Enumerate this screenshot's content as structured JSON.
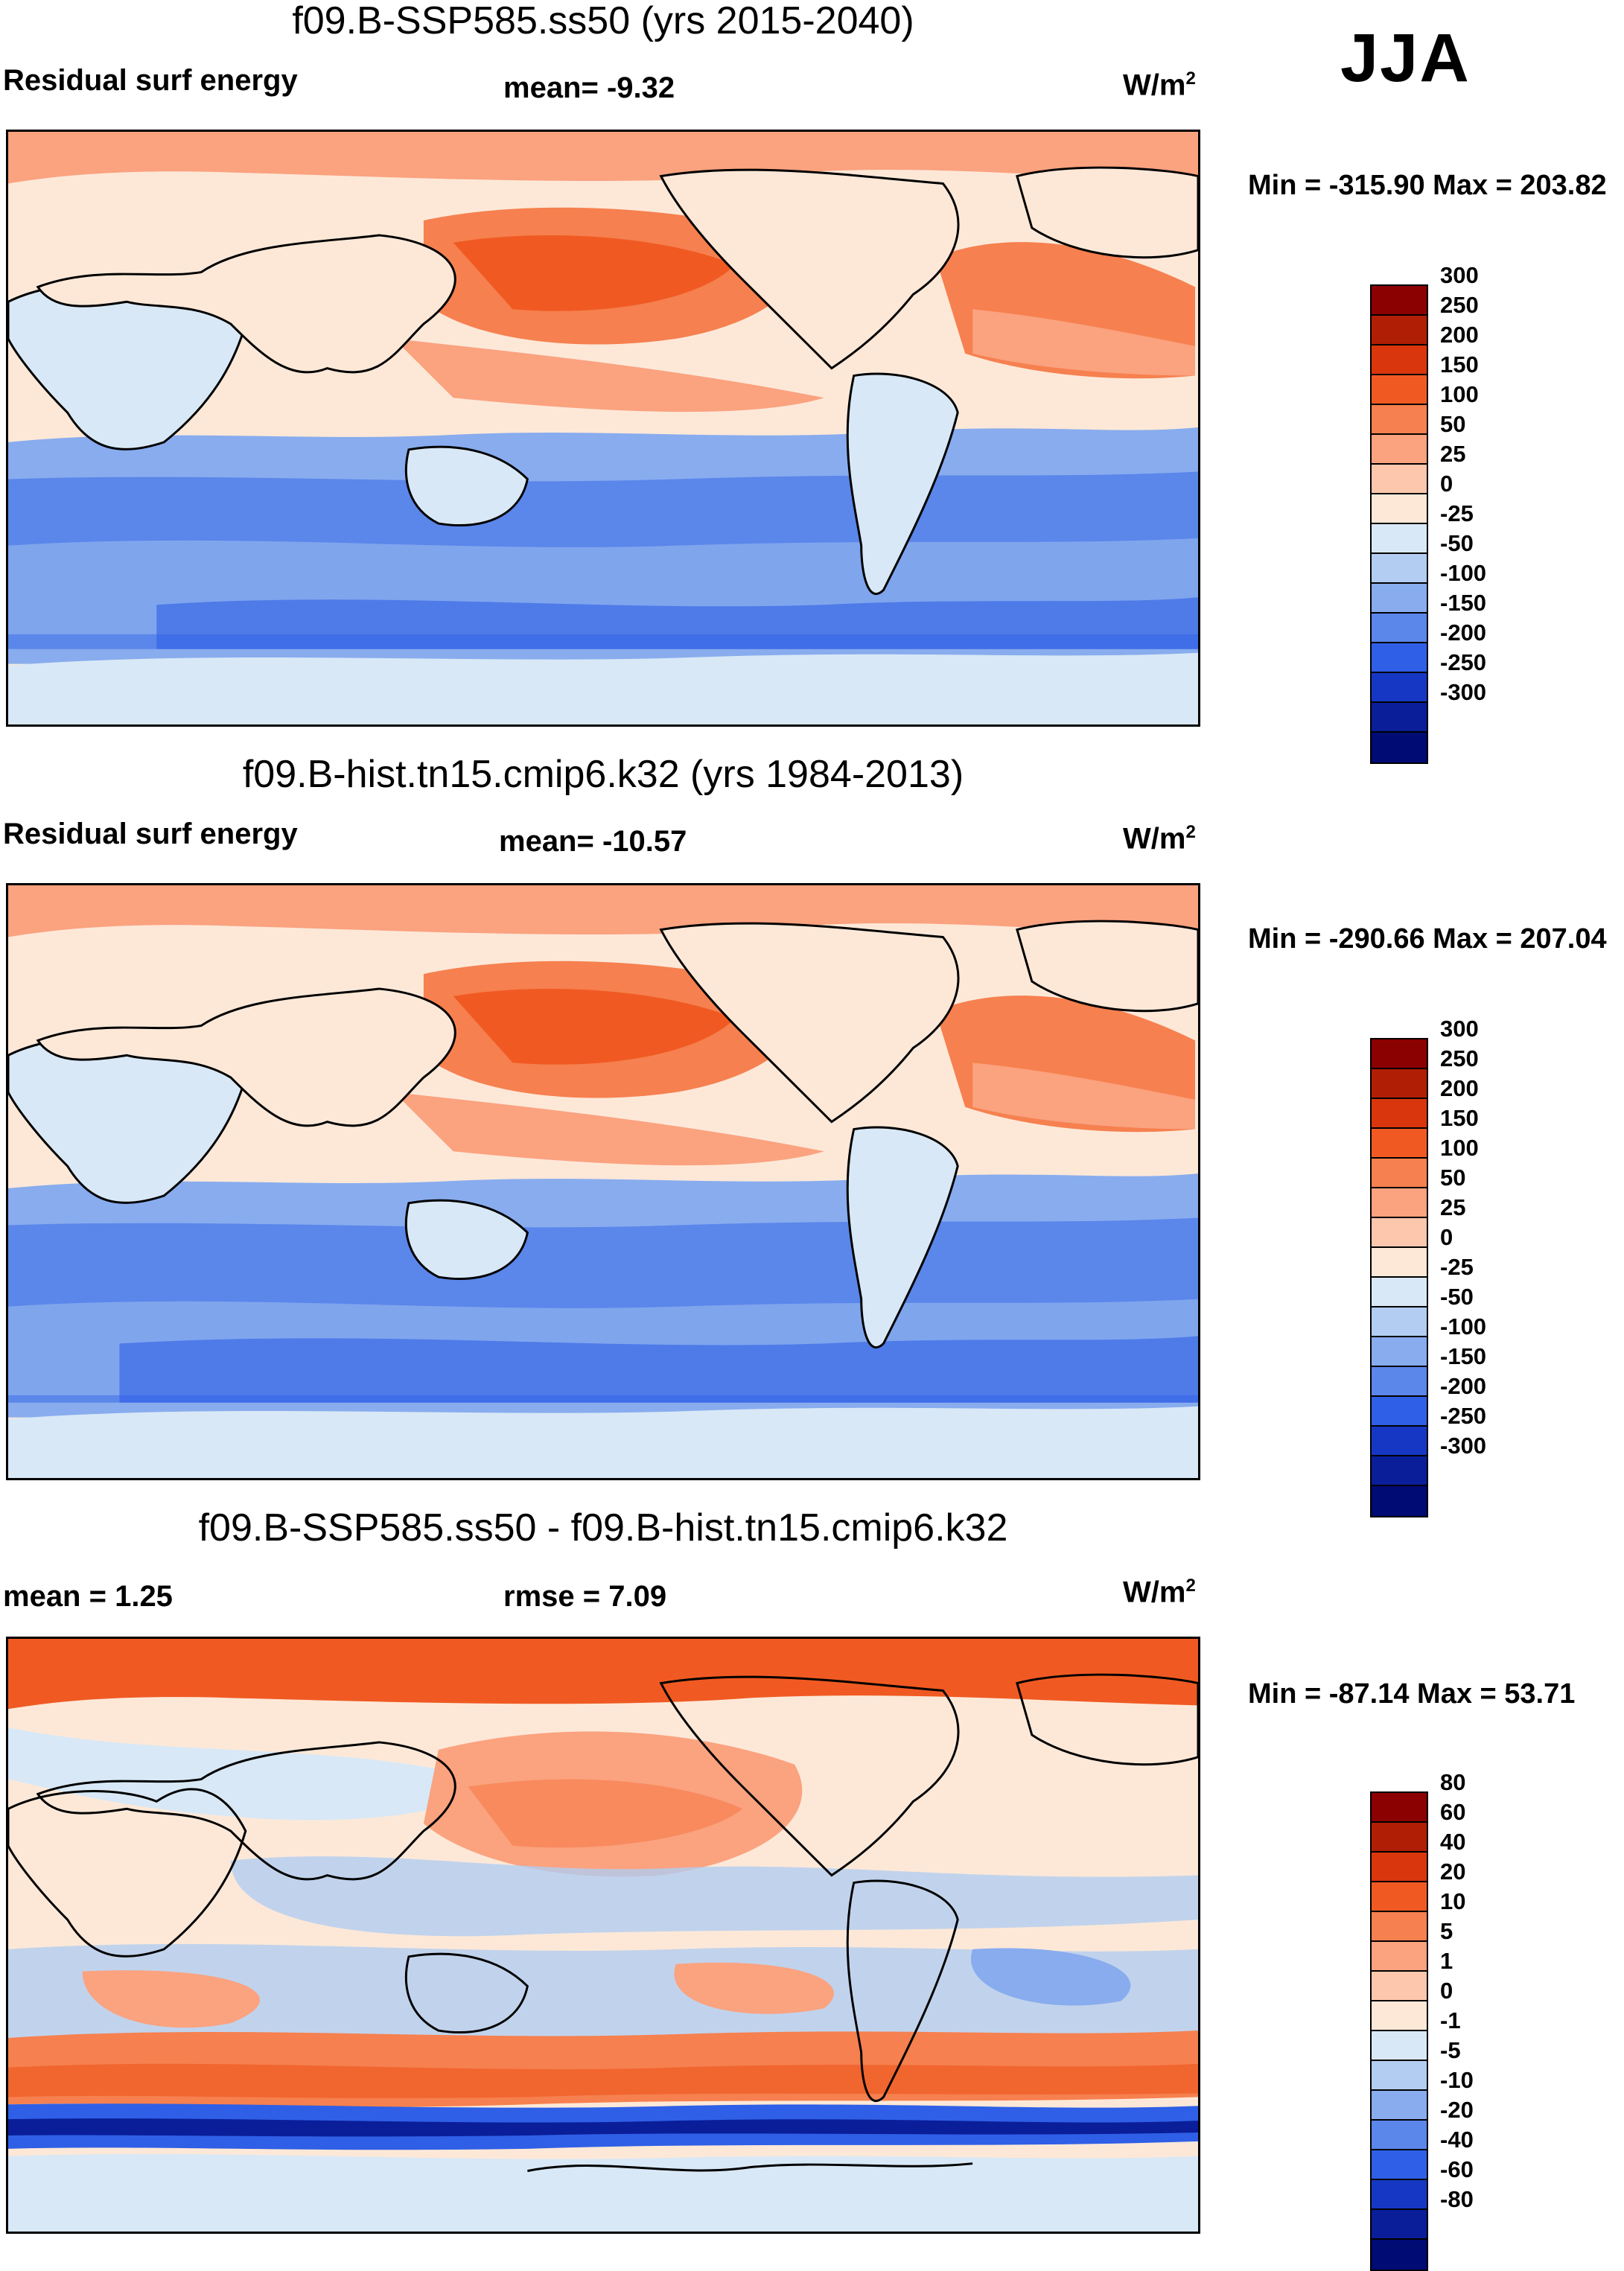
{
  "season": "JJA",
  "panels": [
    {
      "title": "f09.B-SSP585.ss50 (yrs 2015-2040)",
      "left_label": "Residual surf energy",
      "center_label": "mean=  -9.32",
      "units": "W/m",
      "units_sup": "2",
      "minmax": "Min = -315.90 Max = 203.82",
      "colorbar": [
        "300",
        "250",
        "200",
        "150",
        "100",
        "50",
        "25",
        "0",
        "-25",
        "-50",
        "-100",
        "-150",
        "-200",
        "-250",
        "-300"
      ]
    },
    {
      "title": "f09.B-hist.tn15.cmip6.k32 (yrs 1984-2013)",
      "left_label": "Residual surf energy",
      "center_label": "mean= -10.57",
      "units": "W/m",
      "units_sup": "2",
      "minmax": "Min = -290.66 Max = 207.04",
      "colorbar": [
        "300",
        "250",
        "200",
        "150",
        "100",
        "50",
        "25",
        "0",
        "-25",
        "-50",
        "-100",
        "-150",
        "-200",
        "-250",
        "-300"
      ]
    },
    {
      "title": "f09.B-SSP585.ss50 - f09.B-hist.tn15.cmip6.k32",
      "left_label": "mean =   1.25",
      "center_label": "rmse =   7.09",
      "units": "W/m",
      "units_sup": "2",
      "minmax": "Min = -87.14 Max =  53.71",
      "colorbar": [
        "80",
        "60",
        "40",
        "20",
        "10",
        "5",
        "1",
        "0",
        "-1",
        "-5",
        "-10",
        "-20",
        "-40",
        "-60",
        "-80"
      ]
    }
  ],
  "colors": {
    "scale": [
      "#8b0000",
      "#b01e05",
      "#d9360d",
      "#f05a22",
      "#f6804f",
      "#fba27f",
      "#fdc7ad",
      "#fde8d8",
      "#d8e8f6",
      "#b2cdf1",
      "#88acee",
      "#5b86ea",
      "#2f5fe6",
      "#1637c4",
      "#0a1e99",
      "#000b74"
    ]
  }
}
